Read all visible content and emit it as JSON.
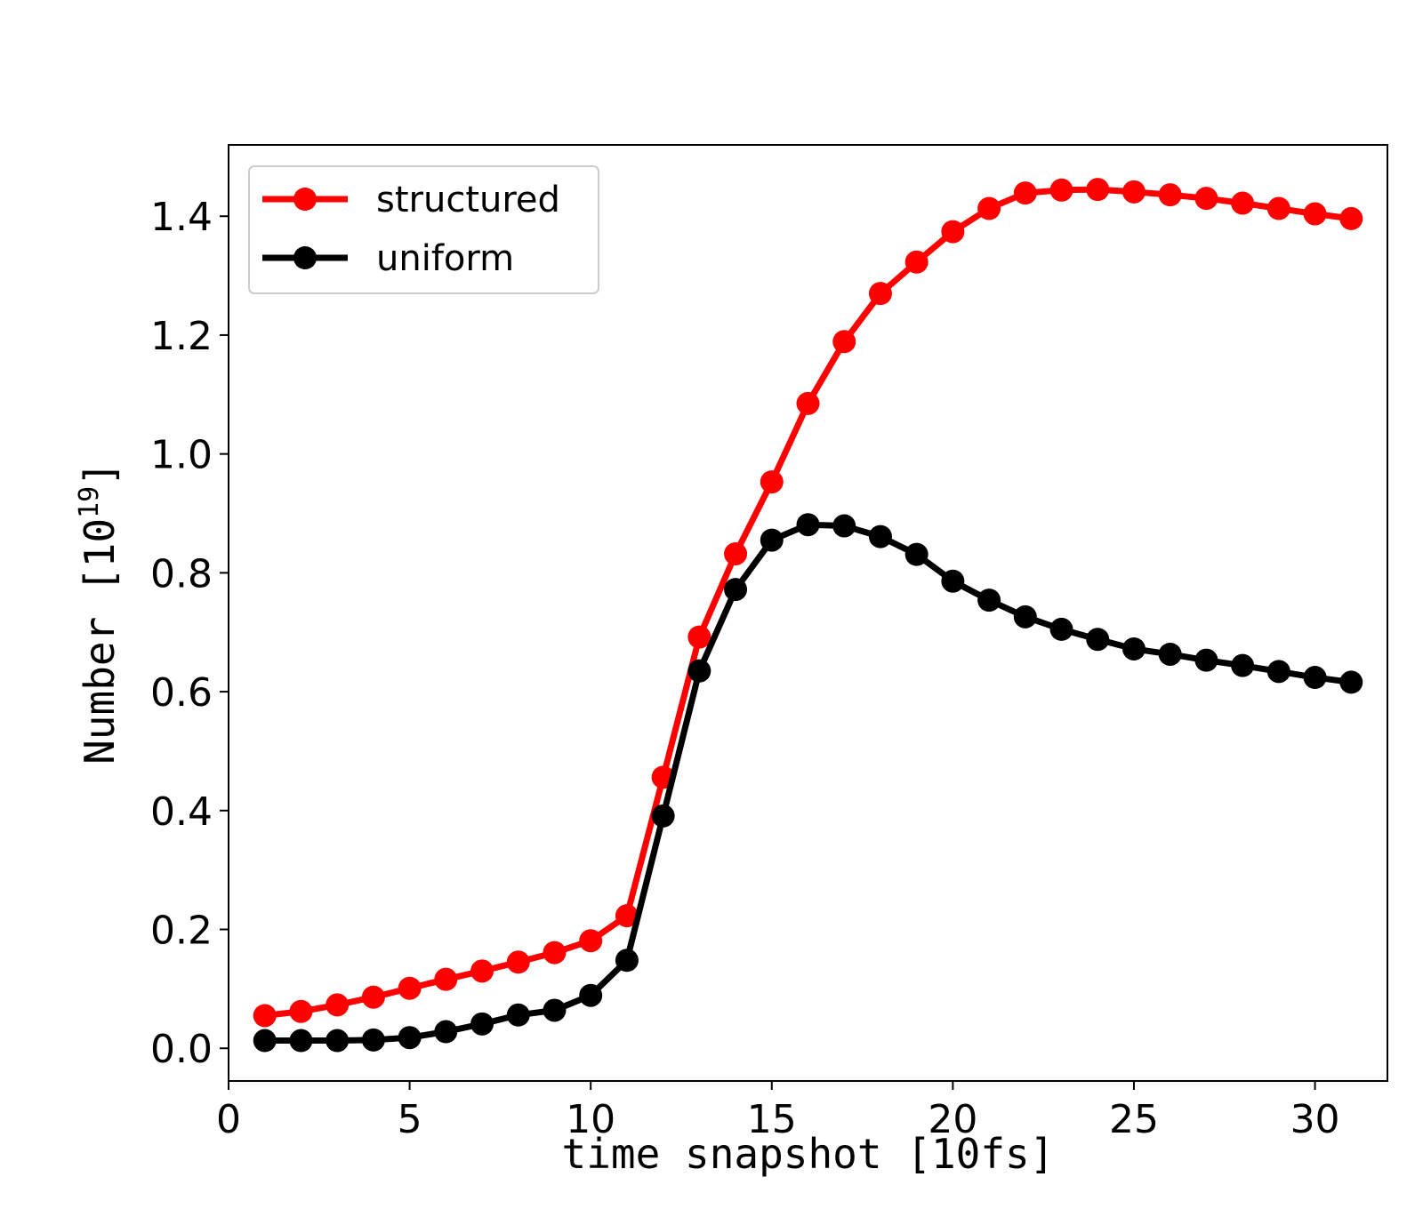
{
  "chart_data": {
    "type": "line",
    "title": "",
    "xlabel": "time snapshot [10fs]",
    "ylabel_main": "Number [10",
    "ylabel_sup": "19",
    "ylabel_end": "]",
    "xlim": [
      0,
      32
    ],
    "ylim": [
      -0.055,
      1.52
    ],
    "xticks": [
      0,
      5,
      10,
      15,
      20,
      25,
      30
    ],
    "xtick_labels": [
      "0",
      "5",
      "10",
      "15",
      "20",
      "25",
      "30"
    ],
    "yticks": [
      0.0,
      0.2,
      0.4,
      0.6,
      0.8,
      1.0,
      1.2,
      1.4
    ],
    "ytick_labels": [
      "0.0",
      "0.2",
      "0.4",
      "0.6",
      "0.8",
      "1.0",
      "1.2",
      "1.4"
    ],
    "grid": false,
    "legend_position": "top-left",
    "x": [
      1,
      2,
      3,
      4,
      5,
      6,
      7,
      8,
      9,
      10,
      11,
      12,
      13,
      14,
      15,
      16,
      17,
      18,
      19,
      20,
      21,
      22,
      23,
      24,
      25,
      26,
      27,
      28,
      29,
      30,
      31
    ],
    "series": [
      {
        "name": "structured",
        "color": "#ff0000",
        "values": [
          0.055,
          0.062,
          0.073,
          0.086,
          0.101,
          0.116,
          0.13,
          0.145,
          0.161,
          0.181,
          0.223,
          0.456,
          0.692,
          0.832,
          0.953,
          1.085,
          1.189,
          1.27,
          1.323,
          1.374,
          1.413,
          1.439,
          1.444,
          1.445,
          1.441,
          1.436,
          1.43,
          1.422,
          1.413,
          1.404,
          1.396
        ]
      },
      {
        "name": "uniform",
        "color": "#000000",
        "values": [
          0.013,
          0.013,
          0.013,
          0.014,
          0.018,
          0.028,
          0.041,
          0.056,
          0.064,
          0.089,
          0.148,
          0.391,
          0.635,
          0.772,
          0.855,
          0.881,
          0.879,
          0.861,
          0.831,
          0.786,
          0.754,
          0.726,
          0.705,
          0.688,
          0.672,
          0.663,
          0.653,
          0.644,
          0.634,
          0.624,
          0.616
        ]
      }
    ]
  }
}
